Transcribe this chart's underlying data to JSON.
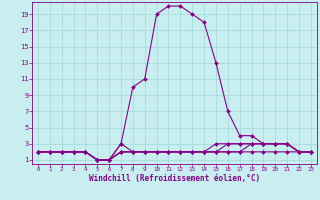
{
  "xlabel": "Windchill (Refroidissement éolien,°C)",
  "x": [
    0,
    1,
    2,
    3,
    4,
    5,
    6,
    7,
    8,
    9,
    10,
    11,
    12,
    13,
    14,
    15,
    16,
    17,
    18,
    19,
    20,
    21,
    22,
    23
  ],
  "line1": [
    2,
    2,
    2,
    2,
    2,
    1,
    1,
    3,
    10,
    11,
    19,
    20,
    20,
    19,
    18,
    13,
    7,
    4,
    4,
    3,
    3,
    3,
    2,
    2
  ],
  "line2": [
    2,
    2,
    2,
    2,
    2,
    1,
    1,
    3,
    2,
    2,
    2,
    2,
    2,
    2,
    2,
    3,
    3,
    3,
    3,
    3,
    3,
    3,
    2,
    2
  ],
  "line3": [
    2,
    2,
    2,
    2,
    2,
    1,
    1,
    2,
    2,
    2,
    2,
    2,
    2,
    2,
    2,
    2,
    3,
    3,
    3,
    3,
    3,
    3,
    2,
    2
  ],
  "line4": [
    2,
    2,
    2,
    2,
    2,
    1,
    1,
    2,
    2,
    2,
    2,
    2,
    2,
    2,
    2,
    2,
    2,
    2,
    3,
    3,
    3,
    3,
    2,
    2
  ],
  "line5": [
    2,
    2,
    2,
    2,
    2,
    1,
    1,
    2,
    2,
    2,
    2,
    2,
    2,
    2,
    2,
    2,
    2,
    2,
    2,
    2,
    2,
    2,
    2,
    2
  ],
  "ylim": [
    0.5,
    20.5
  ],
  "xlim": [
    -0.5,
    23.5
  ],
  "yticks": [
    1,
    3,
    5,
    7,
    9,
    11,
    13,
    15,
    17,
    19
  ],
  "xticks": [
    0,
    1,
    2,
    3,
    4,
    5,
    6,
    7,
    8,
    9,
    10,
    11,
    12,
    13,
    14,
    15,
    16,
    17,
    18,
    19,
    20,
    21,
    22,
    23
  ],
  "line_color": "#880088",
  "bg_color": "#c8eef0",
  "grid_color": "#a0d8d8",
  "marker": "D",
  "marker_size": 2.0,
  "linewidth": 0.8,
  "tick_fontsize": 5.0,
  "xlabel_fontsize": 5.5
}
